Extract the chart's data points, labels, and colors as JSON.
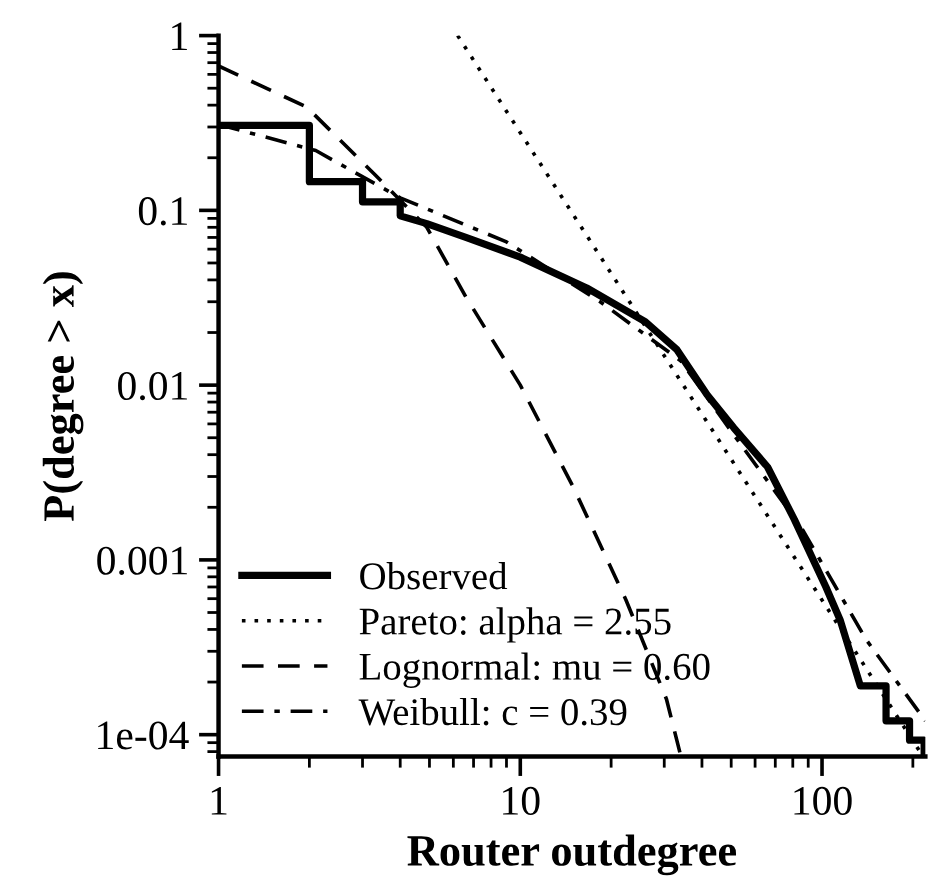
{
  "chart_data": {
    "type": "line",
    "xlabel": "Router outdegree",
    "ylabel": "P(degree > x)",
    "log": "xy",
    "xlim": [
      1,
      220
    ],
    "ylim": [
      7.5e-05,
      1
    ],
    "xticks": [
      1,
      10,
      100
    ],
    "yticks": [
      {
        "value": 0.0001,
        "label": "1e-04"
      },
      0.001,
      0.01,
      0.1,
      1
    ],
    "grid": false,
    "legend": "bottom left",
    "marker": "none",
    "series": [
      {
        "name": "Observed",
        "color": "#000000",
        "line_style": "solid",
        "x": [
          1,
          2,
          2,
          3,
          3,
          4,
          4,
          4.9,
          6.6,
          10,
          16.6,
          26,
          33,
          41.6,
          51,
          66,
          81,
          103,
          115,
          134,
          163,
          163,
          195,
          195,
          218,
          218
        ],
        "values": [
          0.306,
          0.306,
          0.146,
          0.146,
          0.112,
          0.112,
          0.093,
          0.084,
          0.07,
          0.054,
          0.036,
          0.023,
          0.016,
          0.0088,
          0.0057,
          0.0034,
          0.0017,
          0.0007,
          0.00045,
          0.00019,
          0.00019,
          0.00012,
          0.00012,
          9.3e-05,
          9.3e-05,
          7.6e-05
        ]
      },
      {
        "name": "Pareto: alpha = 2.55",
        "color": "#000000",
        "line_style": "dotted",
        "x": [
          6.2,
          210
        ],
        "values": [
          1,
          8.1e-05
        ]
      },
      {
        "name": "Lognormal: mu = 0.60",
        "color": "#000000",
        "line_style": "dashed",
        "x": [
          1,
          1.96,
          3.3,
          4.9,
          6.6,
          10,
          15,
          22.4,
          30.5,
          34
        ],
        "values": [
          0.67,
          0.39,
          0.16,
          0.08,
          0.032,
          0.01,
          0.0026,
          0.00059,
          0.00016,
          7.6e-05
        ]
      },
      {
        "name": "Weibull: c = 0.39",
        "color": "#000000",
        "line_style": "dashdot",
        "x": [
          1,
          2.1,
          4,
          9,
          18.4,
          34,
          51,
          85,
          140,
          220
        ],
        "values": [
          0.31,
          0.22,
          0.118,
          0.066,
          0.03,
          0.0138,
          0.0052,
          0.00155,
          0.00035,
          0.00012
        ]
      }
    ]
  }
}
